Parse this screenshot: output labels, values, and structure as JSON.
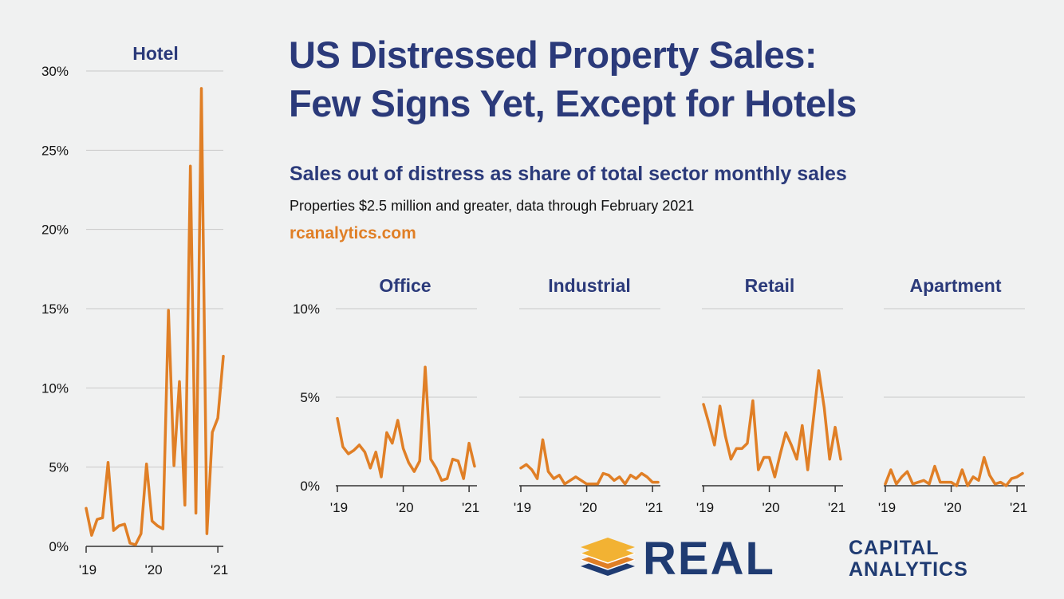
{
  "header": {
    "title_line1": "US Distressed Property Sales:",
    "title_line2": "Few Signs Yet, Except for Hotels",
    "subtitle": "Sales out of distress as share of total sector monthly sales",
    "note": "Properties $2.5 million and greater, data through February 2021",
    "source": "rcanalytics.com"
  },
  "logo": {
    "word1": "REAL",
    "word2": "CAPITAL",
    "word3": "ANALYTICS",
    "colors": {
      "navy": "#1f3b72",
      "gold": "#f2b233",
      "orange": "#e07f26"
    }
  },
  "colors": {
    "line": "#e07f26",
    "title": "#2b3a7a",
    "background": "#f0f1f1",
    "grid": "#c9c9c9"
  },
  "chart_data": [
    {
      "type": "line",
      "title": "Hotel",
      "x": [
        "2019-01",
        "2019-02",
        "2019-03",
        "2019-04",
        "2019-05",
        "2019-06",
        "2019-07",
        "2019-08",
        "2019-09",
        "2019-10",
        "2019-11",
        "2019-12",
        "2020-01",
        "2020-02",
        "2020-03",
        "2020-04",
        "2020-05",
        "2020-06",
        "2020-07",
        "2020-08",
        "2020-09",
        "2020-10",
        "2020-11",
        "2020-12",
        "2021-01",
        "2021-02"
      ],
      "x_tick_labels": [
        "'19",
        "'20",
        "'21"
      ],
      "values": [
        2.4,
        0.7,
        1.7,
        1.8,
        5.3,
        1.0,
        1.3,
        1.4,
        0.2,
        0.1,
        0.8,
        5.2,
        1.6,
        1.3,
        1.1,
        14.9,
        5.1,
        10.4,
        2.6,
        24.0,
        2.1,
        28.9,
        0.8,
        7.2,
        8.1,
        12.0
      ],
      "ylim": [
        0,
        30
      ],
      "y_ticks": [
        0,
        5,
        10,
        15,
        20,
        25,
        30
      ],
      "y_tick_labels": [
        "0%",
        "5%",
        "10%",
        "15%",
        "20%",
        "25%",
        "30%"
      ]
    },
    {
      "type": "line",
      "title": "Office",
      "x": [
        "2019-01",
        "2019-02",
        "2019-03",
        "2019-04",
        "2019-05",
        "2019-06",
        "2019-07",
        "2019-08",
        "2019-09",
        "2019-10",
        "2019-11",
        "2019-12",
        "2020-01",
        "2020-02",
        "2020-03",
        "2020-04",
        "2020-05",
        "2020-06",
        "2020-07",
        "2020-08",
        "2020-09",
        "2020-10",
        "2020-11",
        "2020-12",
        "2021-01",
        "2021-02"
      ],
      "x_tick_labels": [
        "'19",
        "'20",
        "'21"
      ],
      "values": [
        3.8,
        2.2,
        1.8,
        2.0,
        2.3,
        1.9,
        1.0,
        1.9,
        0.5,
        3.0,
        2.4,
        3.7,
        2.1,
        1.3,
        0.8,
        1.4,
        6.7,
        1.5,
        1.0,
        0.3,
        0.4,
        1.5,
        1.4,
        0.4,
        2.4,
        1.1
      ],
      "ylim": [
        0,
        10
      ],
      "y_ticks": [
        0,
        5,
        10
      ],
      "y_tick_labels": [
        "0%",
        "5%",
        "10%"
      ]
    },
    {
      "type": "line",
      "title": "Industrial",
      "x": [
        "2019-01",
        "2019-02",
        "2019-03",
        "2019-04",
        "2019-05",
        "2019-06",
        "2019-07",
        "2019-08",
        "2019-09",
        "2019-10",
        "2019-11",
        "2019-12",
        "2020-01",
        "2020-02",
        "2020-03",
        "2020-04",
        "2020-05",
        "2020-06",
        "2020-07",
        "2020-08",
        "2020-09",
        "2020-10",
        "2020-11",
        "2020-12",
        "2021-01",
        "2021-02"
      ],
      "x_tick_labels": [
        "'19",
        "'20",
        "'21"
      ],
      "values": [
        1.0,
        1.2,
        0.9,
        0.4,
        2.6,
        0.8,
        0.4,
        0.6,
        0.1,
        0.3,
        0.5,
        0.3,
        0.1,
        0.1,
        0.1,
        0.7,
        0.6,
        0.3,
        0.5,
        0.1,
        0.6,
        0.4,
        0.7,
        0.5,
        0.2,
        0.2
      ],
      "ylim": [
        0,
        10
      ],
      "y_ticks": [
        0,
        5,
        10
      ],
      "y_tick_labels": [
        "0%",
        "5%",
        "10%"
      ]
    },
    {
      "type": "line",
      "title": "Retail",
      "x": [
        "2019-01",
        "2019-02",
        "2019-03",
        "2019-04",
        "2019-05",
        "2019-06",
        "2019-07",
        "2019-08",
        "2019-09",
        "2019-10",
        "2019-11",
        "2019-12",
        "2020-01",
        "2020-02",
        "2020-03",
        "2020-04",
        "2020-05",
        "2020-06",
        "2020-07",
        "2020-08",
        "2020-09",
        "2020-10",
        "2020-11",
        "2020-12",
        "2021-01",
        "2021-02"
      ],
      "x_tick_labels": [
        "'19",
        "'20",
        "'21"
      ],
      "values": [
        4.6,
        3.5,
        2.3,
        4.5,
        2.8,
        1.5,
        2.1,
        2.1,
        2.4,
        4.8,
        0.9,
        1.6,
        1.6,
        0.5,
        1.8,
        3.0,
        2.3,
        1.5,
        3.4,
        0.9,
        3.7,
        6.5,
        4.4,
        1.5,
        3.3,
        1.5
      ],
      "ylim": [
        0,
        10
      ],
      "y_ticks": [
        0,
        5,
        10
      ],
      "y_tick_labels": [
        "0%",
        "5%",
        "10%"
      ]
    },
    {
      "type": "line",
      "title": "Apartment",
      "x": [
        "2019-01",
        "2019-02",
        "2019-03",
        "2019-04",
        "2019-05",
        "2019-06",
        "2019-07",
        "2019-08",
        "2019-09",
        "2019-10",
        "2019-11",
        "2019-12",
        "2020-01",
        "2020-02",
        "2020-03",
        "2020-04",
        "2020-05",
        "2020-06",
        "2020-07",
        "2020-08",
        "2020-09",
        "2020-10",
        "2020-11",
        "2020-12",
        "2021-01",
        "2021-02"
      ],
      "x_tick_labels": [
        "'19",
        "'20",
        "'21"
      ],
      "values": [
        0.1,
        0.9,
        0.1,
        0.5,
        0.8,
        0.1,
        0.2,
        0.3,
        0.1,
        1.1,
        0.2,
        0.2,
        0.2,
        0.0,
        0.9,
        0.0,
        0.5,
        0.3,
        1.6,
        0.6,
        0.1,
        0.2,
        0.0,
        0.4,
        0.5,
        0.7
      ],
      "ylim": [
        0,
        10
      ],
      "y_ticks": [
        0,
        5,
        10
      ],
      "y_tick_labels": [
        "0%",
        "5%",
        "10%"
      ]
    }
  ]
}
